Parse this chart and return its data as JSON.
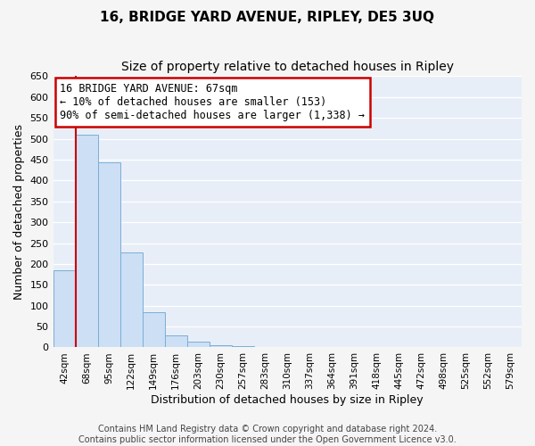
{
  "title": "16, BRIDGE YARD AVENUE, RIPLEY, DE5 3UQ",
  "subtitle": "Size of property relative to detached houses in Ripley",
  "xlabel": "Distribution of detached houses by size in Ripley",
  "ylabel": "Number of detached properties",
  "bar_labels": [
    "42sqm",
    "68sqm",
    "95sqm",
    "122sqm",
    "149sqm",
    "176sqm",
    "203sqm",
    "230sqm",
    "257sqm",
    "283sqm",
    "310sqm",
    "337sqm",
    "364sqm",
    "391sqm",
    "418sqm",
    "445sqm",
    "472sqm",
    "498sqm",
    "525sqm",
    "552sqm",
    "579sqm"
  ],
  "bar_values": [
    185,
    510,
    443,
    228,
    85,
    28,
    13,
    5,
    3,
    1,
    0,
    0,
    1,
    0,
    0,
    1,
    0,
    0,
    0,
    0,
    1
  ],
  "bar_color": "#ccdff5",
  "bar_edge_color": "#7aafd4",
  "vline_color": "#cc0000",
  "vline_x": 0.5,
  "ylim": [
    0,
    650
  ],
  "yticks": [
    0,
    50,
    100,
    150,
    200,
    250,
    300,
    350,
    400,
    450,
    500,
    550,
    600,
    650
  ],
  "annotation_title": "16 BRIDGE YARD AVENUE: 67sqm",
  "annotation_line1": "← 10% of detached houses are smaller (153)",
  "annotation_line2": "90% of semi-detached houses are larger (1,338) →",
  "annotation_box_color": "#cc0000",
  "footer_line1": "Contains HM Land Registry data © Crown copyright and database right 2024.",
  "footer_line2": "Contains public sector information licensed under the Open Government Licence v3.0.",
  "fig_bg_color": "#f5f5f5",
  "plot_bg_color": "#e8eef8",
  "grid_color": "#ffffff",
  "title_fontsize": 11,
  "subtitle_fontsize": 10,
  "ylabel_fontsize": 9,
  "xlabel_fontsize": 9,
  "tick_fontsize": 8,
  "xtick_fontsize": 7.5,
  "annotation_fontsize": 8.5,
  "footer_fontsize": 7
}
